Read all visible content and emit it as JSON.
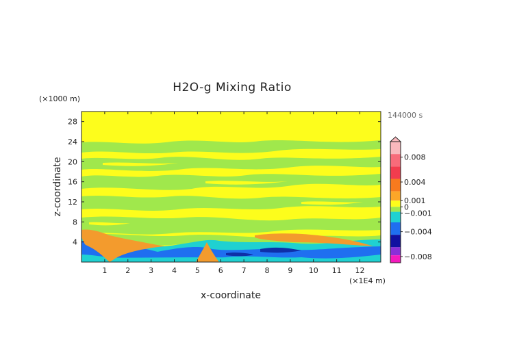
{
  "chart_data": {
    "type": "heatmap",
    "title": "H2O-g Mixing Ratio",
    "time_label": "144000 s",
    "xlabel": "x-coordinate",
    "ylabel": "z-coordinate",
    "x_unit": "(×1E4 m)",
    "y_unit": "(×1000 m)",
    "xlim": [
      0,
      12.9
    ],
    "ylim": [
      0,
      30
    ],
    "x_ticks": [
      "1",
      "2",
      "3",
      "4",
      "5",
      "6",
      "7",
      "8",
      "9",
      "10",
      "11",
      "12"
    ],
    "y_ticks": [
      "4",
      "8",
      "12",
      "16",
      "20",
      "24",
      "28"
    ],
    "grid": false,
    "legend": "right",
    "colorbar": {
      "vmin": -0.009,
      "vmax": 0.0105,
      "tick_labels": [
        "0.008",
        "0.004",
        "0.001",
        "0",
        "−0.001",
        "−0.004",
        "−0.008"
      ],
      "tick_values": [
        0.008,
        0.004,
        0.001,
        0,
        -0.001,
        -0.004,
        -0.008
      ],
      "colors": {
        "top": "#f9b8bd",
        "red": "#f23c4e",
        "orange": "#f77a1e",
        "orange_light": "#fca628",
        "yellow": "#fdfd1c",
        "green": "#a0e84c",
        "cyan": "#1fd1d1",
        "blue": "#1f6ff0",
        "navy": "#1010a0",
        "purple": "#8b2fd8",
        "magenta": "#f51abe"
      }
    },
    "regions": [
      {
        "name": "yellow-background",
        "level": 0.0,
        "color": "#fdfd1c"
      },
      {
        "name": "green-bands",
        "level": -0.0005,
        "color": "#a0e84c"
      },
      {
        "name": "orange-patches",
        "level": 0.0015,
        "color": "#f39b2d"
      },
      {
        "name": "cyan-low-layer",
        "level": -0.002,
        "color": "#1fd1d1"
      },
      {
        "name": "blue-low-layer",
        "level": -0.004,
        "color": "#1f6ff0"
      },
      {
        "name": "navy-core",
        "level": -0.007,
        "color": "#0e2fa8"
      }
    ]
  }
}
